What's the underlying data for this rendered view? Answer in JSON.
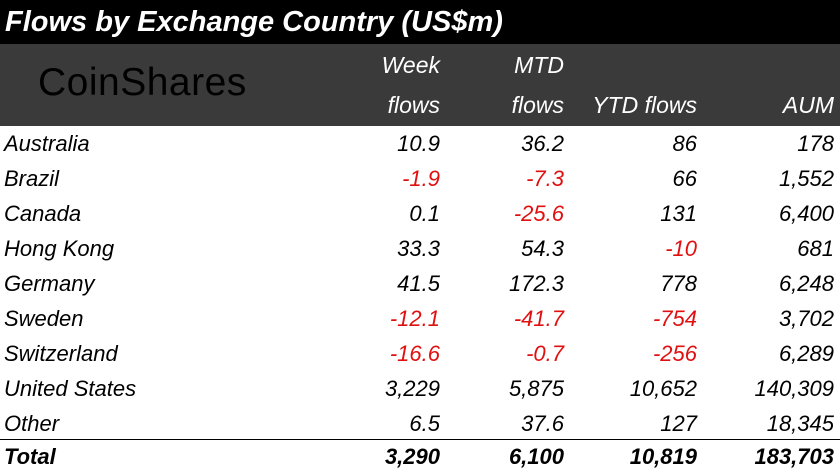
{
  "chart_data": {
    "type": "table",
    "title": "Flows by Exchange Country (US$m)",
    "logo_text": "CoinShares",
    "columns": [
      {
        "line1": "Week",
        "line2": "flows"
      },
      {
        "line1": "MTD",
        "line2": "flows"
      },
      {
        "line1": "",
        "line2": "YTD flows"
      },
      {
        "line1": "",
        "line2": "AUM"
      }
    ],
    "rows": [
      {
        "country": "Australia",
        "week": "10.9",
        "mtd": "36.2",
        "ytd": "86",
        "aum": "178"
      },
      {
        "country": "Brazil",
        "week": "-1.9",
        "mtd": "-7.3",
        "ytd": "66",
        "aum": "1,552"
      },
      {
        "country": "Canada",
        "week": "0.1",
        "mtd": "-25.6",
        "ytd": "131",
        "aum": "6,400"
      },
      {
        "country": "Hong Kong",
        "week": "33.3",
        "mtd": "54.3",
        "ytd": "-10",
        "aum": "681"
      },
      {
        "country": "Germany",
        "week": "41.5",
        "mtd": "172.3",
        "ytd": "778",
        "aum": "6,248"
      },
      {
        "country": "Sweden",
        "week": "-12.1",
        "mtd": "-41.7",
        "ytd": "-754",
        "aum": "3,702"
      },
      {
        "country": "Switzerland",
        "week": "-16.6",
        "mtd": "-0.7",
        "ytd": "-256",
        "aum": "6,289"
      },
      {
        "country": "United States",
        "week": "3,229",
        "mtd": "5,875",
        "ytd": "10,652",
        "aum": "140,309"
      },
      {
        "country": "Other",
        "week": "6.5",
        "mtd": "37.6",
        "ytd": "127",
        "aum": "18,345"
      }
    ],
    "total": {
      "label": "Total",
      "week": "3,290",
      "mtd": "6,100",
      "ytd": "10,819",
      "aum": "183,703"
    },
    "colors": {
      "negative": "#e01010",
      "title_bg": "#000000",
      "header_bg": "#3a3a3a"
    }
  }
}
